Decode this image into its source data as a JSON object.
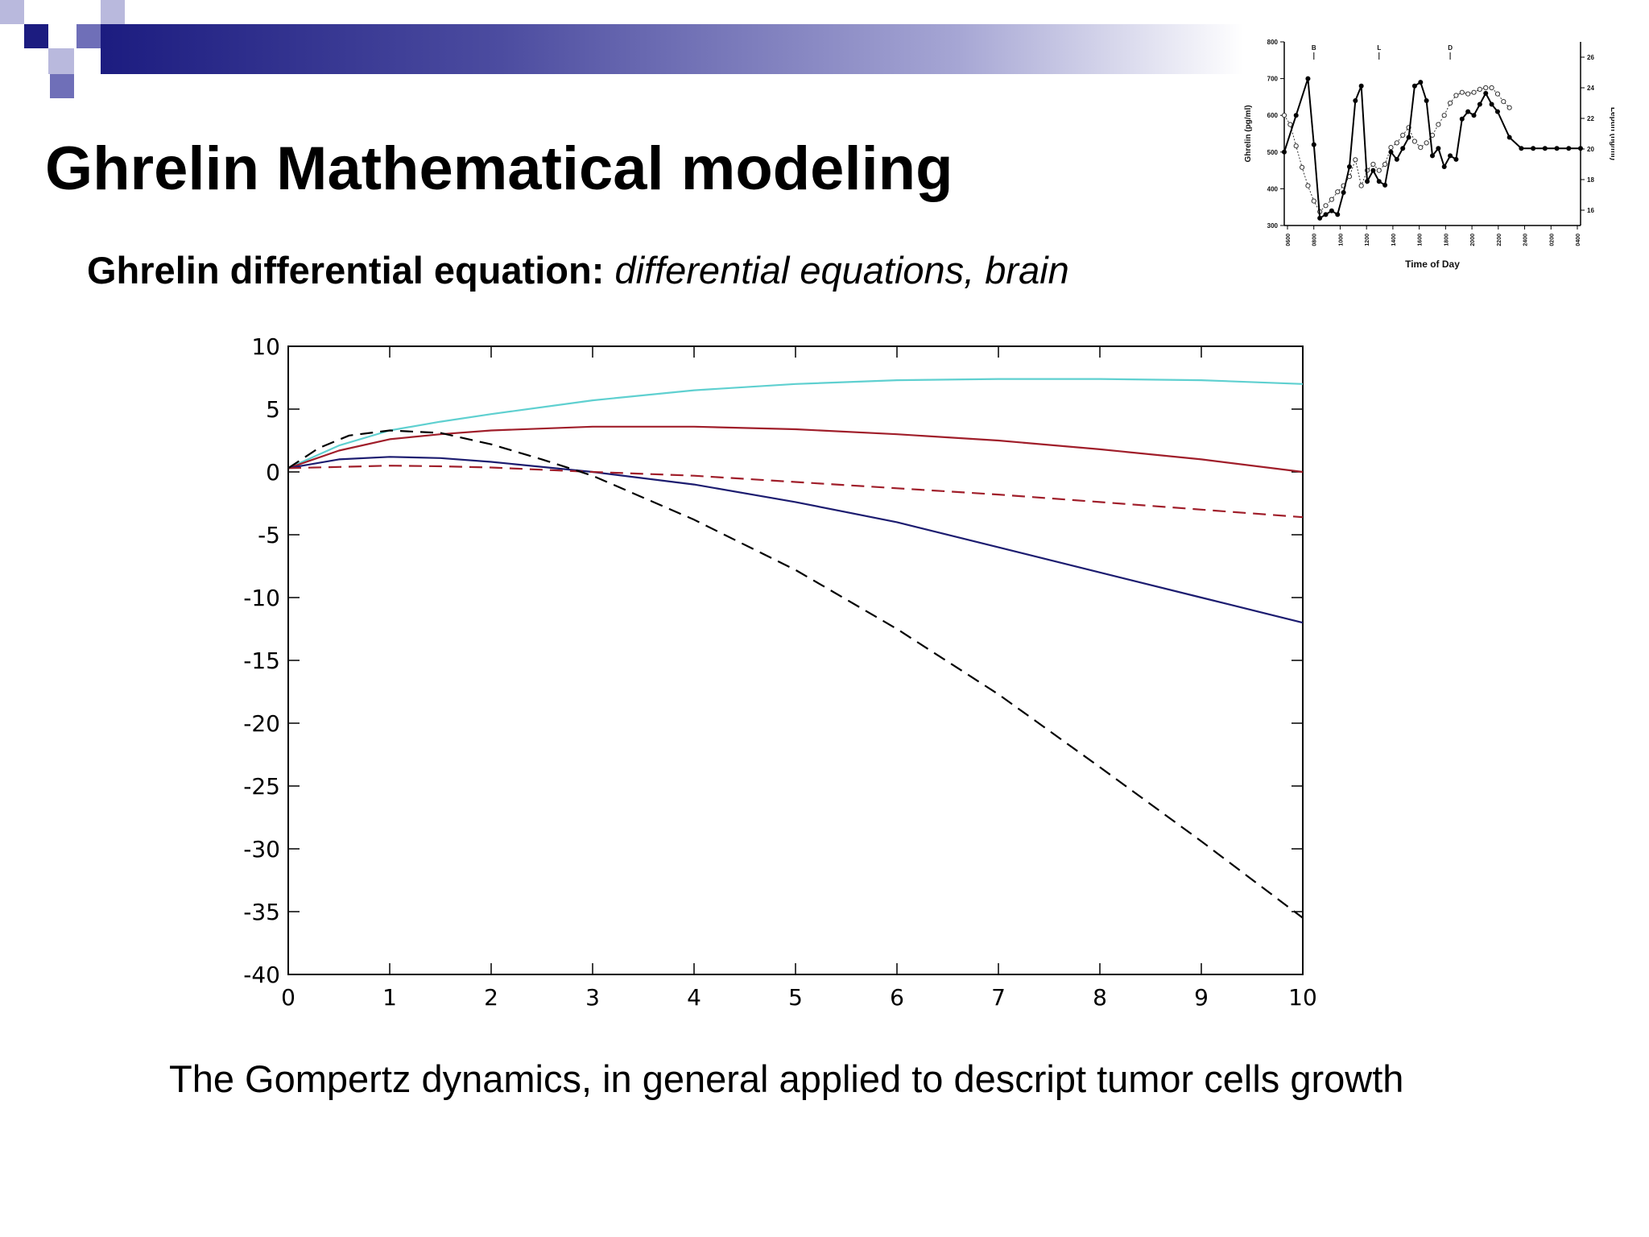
{
  "title": "Ghrelin Mathematical modeling",
  "subtitle": {
    "label": "Ghrelin differential equation:",
    "text": "differential equations, brain"
  },
  "caption": "The Gompertz dynamics, in general applied to descript tumor cells growth",
  "theme": {
    "band_start": "#1c1c80",
    "band_end": "#ffffff",
    "square_dark": "#1c1c80",
    "square_mid": "#6f6fb8",
    "square_light": "#b9b9dd"
  },
  "chart_data": [
    {
      "type": "line",
      "title": "",
      "xlabel": "",
      "ylabel": "",
      "xlim": [
        0,
        10
      ],
      "ylim": [
        -40,
        10
      ],
      "xticks": [
        "0",
        "1",
        "2",
        "3",
        "4",
        "5",
        "6",
        "7",
        "8",
        "9",
        "10"
      ],
      "yticks": [
        "10",
        "5",
        "0",
        "-5",
        "-10",
        "-15",
        "-20",
        "-25",
        "-30",
        "-35",
        "-40"
      ],
      "grid": false,
      "series": [
        {
          "color": "#5fd0d0",
          "style": "solid",
          "x": [
            0,
            0.5,
            1,
            1.5,
            2,
            3,
            4,
            5,
            6,
            7,
            8,
            9,
            10
          ],
          "y": [
            0.3,
            2.1,
            3.3,
            4.0,
            4.6,
            5.7,
            6.5,
            7.0,
            7.3,
            7.4,
            7.4,
            7.3,
            7.0
          ]
        },
        {
          "color": "#a01e2a",
          "style": "solid",
          "x": [
            0,
            0.5,
            1,
            1.5,
            2,
            3,
            4,
            5,
            6,
            7,
            8,
            9,
            10
          ],
          "y": [
            0.3,
            1.7,
            2.6,
            3.0,
            3.3,
            3.6,
            3.6,
            3.4,
            3.0,
            2.5,
            1.8,
            1.0,
            0.0
          ]
        },
        {
          "color": "#1c1c70",
          "style": "solid",
          "x": [
            0,
            0.5,
            1,
            1.5,
            2,
            3,
            4,
            5,
            6,
            7,
            8,
            9,
            10
          ],
          "y": [
            0.3,
            1.0,
            1.2,
            1.1,
            0.8,
            0.0,
            -1.0,
            -2.4,
            -4.0,
            -6.0,
            -8.0,
            -10.0,
            -12.0
          ]
        },
        {
          "color": "#a01e2a",
          "style": "dashed",
          "x": [
            0,
            0.5,
            1,
            1.5,
            2,
            3,
            4,
            5,
            6,
            7,
            8,
            9,
            10
          ],
          "y": [
            0.3,
            0.4,
            0.5,
            0.45,
            0.35,
            0.0,
            -0.3,
            -0.8,
            -1.3,
            -1.8,
            -2.4,
            -3.0,
            -3.6
          ]
        },
        {
          "color": "#000000",
          "style": "dashed",
          "x": [
            0,
            0.3,
            0.6,
            1,
            1.5,
            2,
            2.5,
            3,
            4,
            5,
            6,
            7,
            8,
            9,
            10
          ],
          "y": [
            0.3,
            1.9,
            2.9,
            3.3,
            3.1,
            2.2,
            1.0,
            -0.3,
            -3.8,
            -7.8,
            -12.5,
            -17.7,
            -23.5,
            -29.4,
            -35.5
          ]
        }
      ]
    },
    {
      "type": "line",
      "title": "",
      "xlabel": "Time of Day",
      "ylabel": "Ghrelin (pg/ml)",
      "ylabel_right": "Leptin (ng/ml)",
      "ylim": [
        300,
        800
      ],
      "ylim_right": [
        15,
        27
      ],
      "yticks": [
        "800",
        "700",
        "600",
        "500",
        "400",
        "300"
      ],
      "yticks_right": [
        "26",
        "24",
        "22",
        "20",
        "18",
        "16"
      ],
      "xticks": [
        "0600",
        "0800",
        "1000",
        "1200",
        "1400",
        "1600",
        "1800",
        "2000",
        "2200",
        "2400",
        "0200",
        "0400"
      ],
      "xlim": [
        0,
        25
      ],
      "annotations": [
        {
          "text": "B",
          "x": 2.5
        },
        {
          "text": "L",
          "x": 8.0
        },
        {
          "text": "D",
          "x": 14.0
        }
      ],
      "series": [
        {
          "name": "Ghrelin",
          "marker": "filled",
          "style": "solid",
          "x": [
            0,
            1,
            2,
            2.5,
            3,
            3.5,
            4,
            4.5,
            5,
            5.5,
            6,
            6.5,
            7,
            7.5,
            8,
            8.5,
            9,
            9.5,
            10,
            10.5,
            11,
            11.5,
            12,
            12.5,
            13,
            13.5,
            14,
            14.5,
            15,
            15.5,
            16,
            16.5,
            17,
            17.5,
            18,
            19,
            20,
            21,
            22,
            23,
            24,
            25
          ],
          "y": [
            500,
            600,
            700,
            520,
            320,
            330,
            340,
            330,
            390,
            460,
            640,
            680,
            420,
            450,
            420,
            410,
            500,
            480,
            510,
            540,
            680,
            690,
            640,
            490,
            510,
            460,
            490,
            480,
            590,
            610,
            600,
            630,
            660,
            630,
            610,
            540,
            510,
            510,
            510,
            510,
            510,
            510
          ]
        },
        {
          "name": "Leptin",
          "marker": "open",
          "style": "dotted",
          "x": [
            0,
            0.5,
            1,
            1.5,
            2,
            2.5,
            3,
            3.5,
            4,
            4.5,
            5,
            5.5,
            6,
            6.5,
            7,
            7.5,
            8,
            8.5,
            9,
            9.5,
            10,
            10.5,
            11,
            11.5,
            12,
            12.5,
            13,
            13.5,
            14,
            14.5,
            15,
            15.5,
            16,
            16.5,
            17,
            17.5,
            18,
            18.5,
            19
          ],
          "y": [
            22.2,
            21.6,
            20.2,
            18.8,
            17.6,
            16.6,
            15.9,
            16.3,
            16.7,
            17.2,
            17.6,
            18.2,
            19.3,
            17.6,
            18.6,
            19.0,
            18.6,
            19.0,
            20.1,
            20.4,
            20.9,
            21.4,
            20.5,
            20.1,
            20.4,
            20.9,
            21.6,
            22.2,
            23.0,
            23.5,
            23.7,
            23.6,
            23.7,
            23.9,
            24.0,
            24.0,
            23.6,
            23.1,
            22.7
          ]
        }
      ]
    }
  ]
}
